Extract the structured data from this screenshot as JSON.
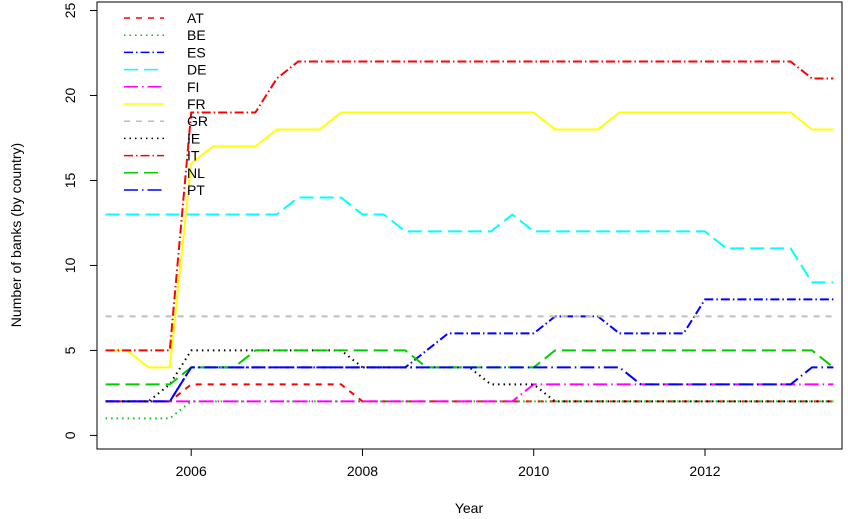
{
  "chart_data": {
    "type": "line",
    "title": "",
    "xlabel": "Year",
    "ylabel": "Number of banks (by country)",
    "xlim": [
      2004.9,
      2013.6
    ],
    "ylim": [
      -0.8,
      25.5
    ],
    "xticks": [
      2006,
      2008,
      2010,
      2012
    ],
    "xtick_labels": [
      "2006",
      "2008",
      "2010",
      "2012"
    ],
    "yticks": [
      0,
      5,
      10,
      15,
      20,
      25
    ],
    "ytick_labels": [
      "0",
      "5",
      "10",
      "15",
      "20",
      "25"
    ],
    "grid": false,
    "legend_position": "top-left",
    "x": [
      2005.0,
      2005.25,
      2005.5,
      2005.75,
      2006.0,
      2006.25,
      2006.5,
      2006.75,
      2007.0,
      2007.25,
      2007.5,
      2007.75,
      2008.0,
      2008.25,
      2008.5,
      2008.75,
      2009.0,
      2009.25,
      2009.5,
      2009.75,
      2010.0,
      2010.25,
      2010.5,
      2010.75,
      2011.0,
      2011.25,
      2011.5,
      2011.75,
      2012.0,
      2012.25,
      2012.5,
      2012.75,
      2013.0,
      2013.25,
      2013.5
    ],
    "series": [
      {
        "name": "AT",
        "color": "#FF0000",
        "dash": "6,6",
        "values": [
          2,
          2,
          2,
          2,
          3,
          3,
          3,
          3,
          3,
          3,
          3,
          3,
          2,
          2,
          2,
          2,
          2,
          2,
          2,
          2,
          2,
          2,
          2,
          2,
          2,
          2,
          2,
          2,
          2,
          2,
          2,
          2,
          2,
          2,
          2
        ]
      },
      {
        "name": "BE",
        "color": "#00CD00",
        "dash": "1.5,4",
        "values": [
          1,
          1,
          1,
          1,
          2,
          2,
          2,
          2,
          2,
          2,
          2,
          2,
          2,
          2,
          2,
          2,
          2,
          2,
          2,
          2,
          2,
          2,
          2,
          2,
          2,
          2,
          2,
          2,
          2,
          2,
          2,
          2,
          2,
          2,
          2
        ]
      },
      {
        "name": "ES",
        "color": "#0000FF",
        "dash": "9,3,1.5,3",
        "values": [
          2,
          2,
          2,
          2,
          4,
          4,
          4,
          4,
          4,
          4,
          4,
          4,
          4,
          4,
          4,
          5,
          6,
          6,
          6,
          6,
          6,
          7,
          7,
          7,
          6,
          6,
          6,
          6,
          8,
          8,
          8,
          8,
          8,
          8,
          8
        ]
      },
      {
        "name": "DE",
        "color": "#00FFFF",
        "dash": "14,6",
        "values": [
          13,
          13,
          13,
          13,
          13,
          13,
          13,
          13,
          13,
          14,
          14,
          14,
          13,
          13,
          12,
          12,
          12,
          12,
          12,
          13,
          12,
          12,
          12,
          12,
          12,
          12,
          12,
          12,
          12,
          11,
          11,
          11,
          11,
          9,
          9
        ]
      },
      {
        "name": "FI",
        "color": "#FF00FF",
        "dash": "14,4,1.5,4",
        "values": [
          2,
          2,
          2,
          2,
          2,
          2,
          2,
          2,
          2,
          2,
          2,
          2,
          2,
          2,
          2,
          2,
          2,
          2,
          2,
          2,
          3,
          3,
          3,
          3,
          3,
          3,
          3,
          3,
          3,
          3,
          3,
          3,
          3,
          3,
          3
        ]
      },
      {
        "name": "FR",
        "color": "#FFFF00",
        "dash": "none",
        "values": [
          5,
          5,
          4,
          4,
          16,
          17,
          17,
          17,
          18,
          18,
          18,
          19,
          19,
          19,
          19,
          19,
          19,
          19,
          19,
          19,
          19,
          18,
          18,
          18,
          19,
          19,
          19,
          19,
          19,
          19,
          19,
          19,
          19,
          18,
          18
        ]
      },
      {
        "name": "GR",
        "color": "#BEBEBE",
        "dash": "6,6",
        "values": [
          7,
          7,
          7,
          7,
          7,
          7,
          7,
          7,
          7,
          7,
          7,
          7,
          7,
          7,
          7,
          7,
          7,
          7,
          7,
          7,
          7,
          7,
          7,
          7,
          7,
          7,
          7,
          7,
          7,
          7,
          7,
          7,
          7,
          7,
          7
        ]
      },
      {
        "name": "IE",
        "color": "#000000",
        "dash": "1.5,4",
        "values": [
          2,
          2,
          2,
          3,
          5,
          5,
          5,
          5,
          5,
          5,
          5,
          5,
          4,
          4,
          4,
          4,
          4,
          4,
          3,
          3,
          3,
          2,
          2,
          2,
          2,
          2,
          2,
          2,
          2,
          2,
          2,
          2,
          2,
          2,
          2
        ]
      },
      {
        "name": "IT",
        "color": "#FF0000",
        "dash": "9,3,1.5,3",
        "values": [
          5,
          5,
          5,
          5,
          19,
          19,
          19,
          19,
          21,
          22,
          22,
          22,
          22,
          22,
          22,
          22,
          22,
          22,
          22,
          22,
          22,
          22,
          22,
          22,
          22,
          22,
          22,
          22,
          22,
          22,
          22,
          22,
          22,
          21,
          21
        ]
      },
      {
        "name": "NL",
        "color": "#00CD00",
        "dash": "14,6",
        "values": [
          3,
          3,
          3,
          3,
          4,
          4,
          4,
          5,
          5,
          5,
          5,
          5,
          5,
          5,
          5,
          4,
          4,
          4,
          4,
          4,
          4,
          5,
          5,
          5,
          5,
          5,
          5,
          5,
          5,
          5,
          5,
          5,
          5,
          5,
          4
        ]
      },
      {
        "name": "PT",
        "color": "#0000FF",
        "dash": "14,4,1.5,4",
        "values": [
          2,
          2,
          2,
          2,
          4,
          4,
          4,
          4,
          4,
          4,
          4,
          4,
          4,
          4,
          4,
          4,
          4,
          4,
          4,
          4,
          4,
          4,
          4,
          4,
          4,
          3,
          3,
          3,
          3,
          3,
          3,
          3,
          3,
          4,
          4
        ]
      }
    ]
  }
}
